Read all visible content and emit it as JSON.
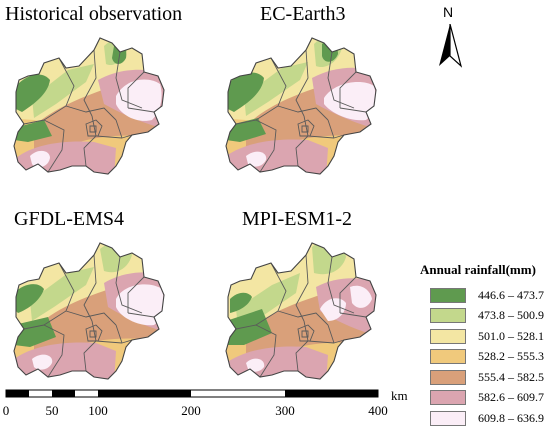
{
  "panels": [
    {
      "title": "Historical observation"
    },
    {
      "title": "EC-Earth3"
    },
    {
      "title": "GFDL-EMS4"
    },
    {
      "title": "MPI-ESM1-2"
    }
  ],
  "north_arrow": {
    "label": "N"
  },
  "legend": {
    "title": "Annual rainfall(mm)",
    "classes": [
      {
        "label": "446.6 – 473.7",
        "color": "#5f9a4f"
      },
      {
        "label": "473.8 – 500.9",
        "color": "#c3d88c"
      },
      {
        "label": "501.0 – 528.1",
        "color": "#f3e6a3"
      },
      {
        "label": "528.2 – 555.3",
        "color": "#f0c97c"
      },
      {
        "label": "555.4 – 582.5",
        "color": "#d9a07a"
      },
      {
        "label": "582.6 – 609.7",
        "color": "#dba5b0"
      },
      {
        "label": "609.8 – 636.9",
        "color": "#fbeef7"
      }
    ]
  },
  "scale_bar": {
    "unit": "km",
    "ticks": [
      "0",
      "50",
      "100",
      "200",
      "300",
      "400"
    ]
  }
}
